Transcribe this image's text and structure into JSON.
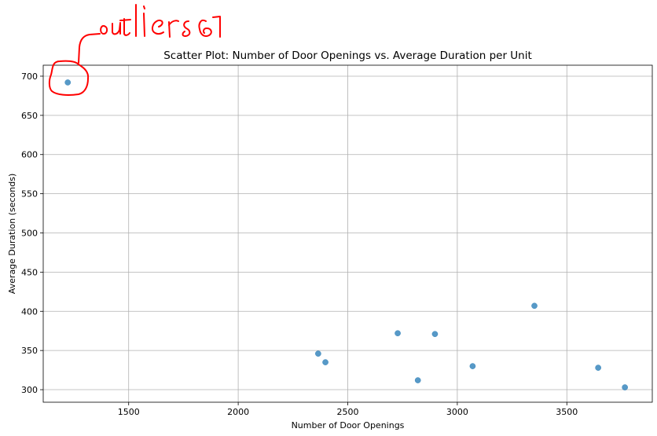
{
  "chart_data": {
    "type": "scatter",
    "title": "Scatter Plot: Number of Door Openings vs. Average Duration per Unit",
    "xlabel": "Number of Door Openings",
    "ylabel": "Average Duration (seconds)",
    "xlim": [
      1110,
      3890
    ],
    "ylim": [
      284,
      714
    ],
    "xticks": [
      1500,
      2000,
      2500,
      3000,
      3500
    ],
    "yticks": [
      300,
      350,
      400,
      450,
      500,
      550,
      600,
      650,
      700
    ],
    "grid": true,
    "point_color": "#1f77b4",
    "points": [
      {
        "x": 1222,
        "y": 692
      },
      {
        "x": 2365,
        "y": 346
      },
      {
        "x": 2398,
        "y": 335
      },
      {
        "x": 2728,
        "y": 372
      },
      {
        "x": 2820,
        "y": 312
      },
      {
        "x": 2898,
        "y": 371
      },
      {
        "x": 3070,
        "y": 330
      },
      {
        "x": 3352,
        "y": 407
      },
      {
        "x": 3643,
        "y": 328
      },
      {
        "x": 3765,
        "y": 303
      }
    ]
  },
  "annotation": {
    "text": "outliers",
    "color": "#ff0000"
  }
}
